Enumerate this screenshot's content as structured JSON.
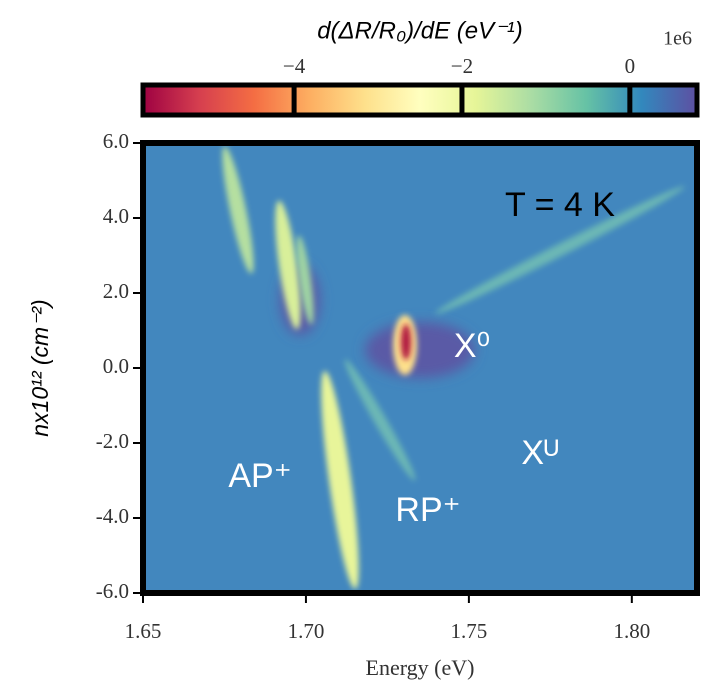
{
  "chart_data": {
    "type": "heatmap",
    "xlabel": "Energy (eV)",
    "ylabel": "nx10¹² (cm⁻²)",
    "xlim": [
      1.65,
      1.82
    ],
    "xticks": [
      1.65,
      {
        "value": 1.7,
        "label": "1.70"
      },
      1.75,
      {
        "value": 1.8,
        "label": "1.80"
      }
    ],
    "ylim": [
      -6,
      6
    ],
    "yticks": [
      {
        "value": -6,
        "label": "-6.0"
      },
      {
        "value": -4,
        "label": "-4.0"
      },
      {
        "value": -2,
        "label": "-2.0"
      },
      {
        "value": 0,
        "label": "0.0"
      },
      {
        "value": 2,
        "label": "2.0"
      },
      {
        "value": 4,
        "label": "4.0"
      },
      {
        "value": 6,
        "label": "6.0"
      }
    ],
    "colorbar": {
      "label": "d(ΔR/R₀)/dE (eV⁻¹)",
      "offset_label": "1e6",
      "colormap": "Spectral",
      "lim": [
        -5800000,
        800000
      ],
      "ticks": [
        {
          "value": -4000000,
          "label": "−4"
        },
        {
          "value": -2000000,
          "label": "−2"
        },
        {
          "value": 0,
          "label": "0"
        }
      ]
    },
    "annotations": [
      "T = 4 K",
      "X⁰",
      "Xᵁ",
      "AP⁺",
      "RP⁺"
    ]
  }
}
